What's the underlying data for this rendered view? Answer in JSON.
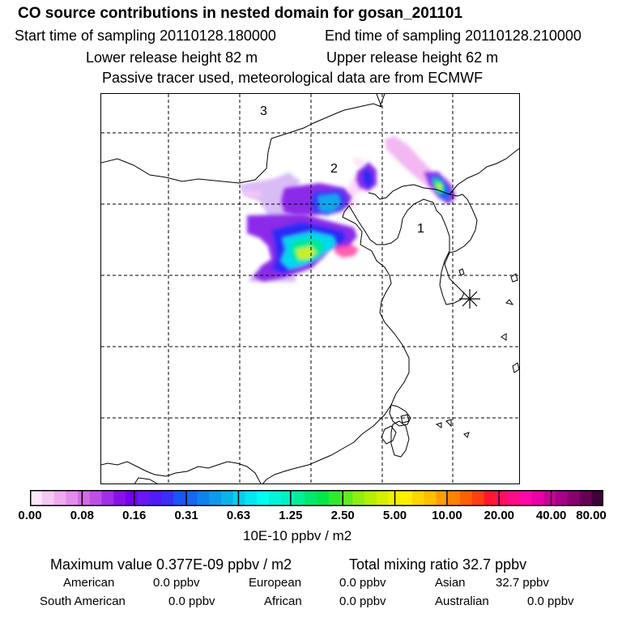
{
  "header": {
    "title": "CO  source contributions in nested domain for gosan_201101",
    "start_time": "Start time of sampling 20110128.180000",
    "end_time": "End time of sampling 20110128.210000",
    "lower_release": "Lower release height   82 m",
    "upper_release": "Upper release height   62 m",
    "note": "Passive tracer used, meteorological data are from ECMWF"
  },
  "map": {
    "labels": [
      "1",
      "2",
      "3"
    ],
    "station_marker": "asterisk-icon"
  },
  "colorbar": {
    "ticks": [
      "0.00",
      "0.08",
      "0.16",
      "0.31",
      "0.63",
      "1.25",
      "2.50",
      "5.00",
      "10.00",
      "20.00",
      "40.00",
      "80.00"
    ],
    "unit": "10E-10 ppbv / m2",
    "colors": [
      "#fde8fb",
      "#f6c9f3",
      "#efabef",
      "#e58ceb",
      "#d36be5",
      "#bd4fe6",
      "#a12fe8",
      "#8811ea",
      "#7300f0",
      "#6a17f5",
      "#4f1cf7",
      "#3b2ef8",
      "#1a55f5",
      "#1468f2",
      "#0f82ee",
      "#0c9aeb",
      "#08b4ea",
      "#06d0ec",
      "#04e6f0",
      "#00ffee",
      "#00f5d8",
      "#00f0c0",
      "#00ee98",
      "#00e870",
      "#00e848",
      "#30ea30",
      "#60ec20",
      "#90ee10",
      "#b4f000",
      "#d4f000",
      "#f2f000",
      "#fff000",
      "#ffd600",
      "#ffbe00",
      "#ffa000",
      "#ff8200",
      "#ff6000",
      "#ff4010",
      "#ff1830",
      "#ff1060",
      "#ff0c88",
      "#ff08a8",
      "#e800a8",
      "#cc0099",
      "#a80088",
      "#880070",
      "#660055",
      "#40003a"
    ]
  },
  "stats": {
    "maximum": "Maximum value  0.377E-09 ppbv / m2",
    "total": "Total mixing ratio       32.7 ppbv",
    "american_label": "American",
    "american_value": "0.0 ppbv",
    "european_label": "European",
    "european_value": "0.0 ppbv",
    "asian_label": "Asian",
    "asian_value": "32.7 ppbv",
    "south_american_label": "South American",
    "south_american_value": "0.0 ppbv",
    "african_label": "African",
    "african_value": "0.0 ppbv",
    "australian_label": "Australian",
    "australian_value": "0.0 ppbv"
  }
}
